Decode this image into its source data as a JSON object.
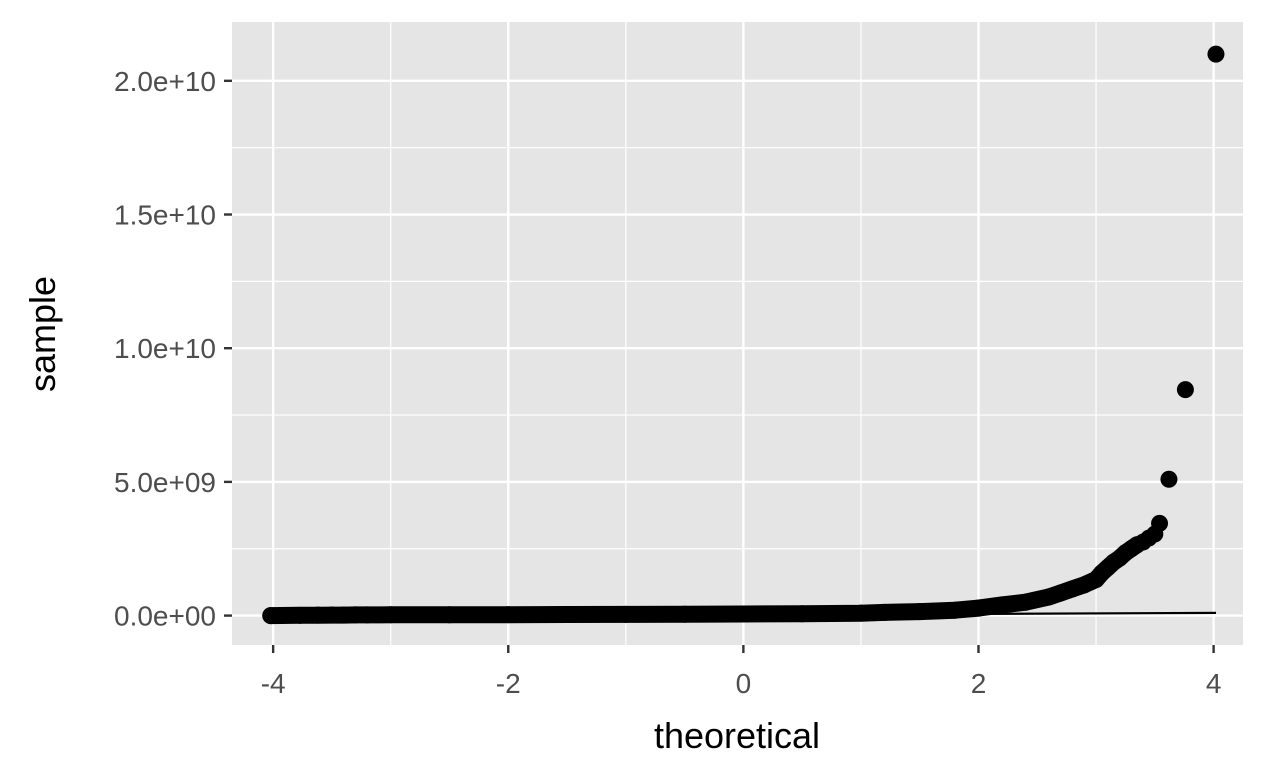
{
  "chart_data": {
    "type": "scatter",
    "title": "",
    "xlabel": "theoretical",
    "ylabel": "sample",
    "xlim": [
      -4.35,
      4.25
    ],
    "ylim": [
      -1100000000.0,
      22200000000.0
    ],
    "x_ticks": [
      -4,
      -2,
      0,
      2,
      4
    ],
    "x_tick_labels": [
      "-4",
      "-2",
      "0",
      "2",
      "4"
    ],
    "y_ticks": [
      0,
      5000000000,
      10000000000,
      15000000000,
      20000000000
    ],
    "y_tick_labels": [
      "0.0e+00",
      "5.0e+09",
      "1.0e+10",
      "1.5e+10",
      "2.0e+10"
    ],
    "grid": true,
    "legend": "none",
    "colors": {
      "panel_background": "#e5e5e5",
      "grid": "#ffffff",
      "points": "#000000",
      "reference_line": "#000000",
      "tick_text": "#4d4d4d"
    },
    "series": [
      {
        "kind": "points",
        "x": [
          -4.02,
          -3.77,
          -3.62,
          -3.5,
          -3.4,
          -3.3,
          -3.2,
          -3.0,
          -2.5,
          -2.0,
          -1.5,
          -1.0,
          -0.5,
          0.0,
          0.5,
          1.0,
          1.2,
          1.5,
          1.8,
          2.0,
          2.2,
          2.4,
          2.6,
          2.7,
          2.8,
          2.9,
          3.0,
          3.05,
          3.1,
          3.15,
          3.2,
          3.25,
          3.3,
          3.35,
          3.4,
          3.45,
          3.5,
          3.54,
          3.62,
          3.76,
          4.02
        ],
        "y": [
          0,
          10000000,
          15000000,
          20000000,
          20000000,
          25000000,
          25000000,
          30000000,
          30000000,
          35000000,
          40000000,
          45000000,
          50000000,
          60000000,
          70000000,
          90000000,
          120000000,
          150000000,
          200000000,
          280000000,
          400000000,
          500000000,
          700000000,
          850000000,
          1000000000,
          1150000000,
          1350000000,
          1600000000,
          1800000000,
          2000000000,
          2150000000,
          2350000000,
          2500000000,
          2650000000,
          2750000000,
          2900000000,
          3050000000,
          3450000000,
          5100000000,
          8450000000,
          21000000000
        ]
      },
      {
        "kind": "line",
        "x": [
          -4.02,
          4.02
        ],
        "y": [
          -50000000,
          100000000
        ]
      }
    ]
  }
}
